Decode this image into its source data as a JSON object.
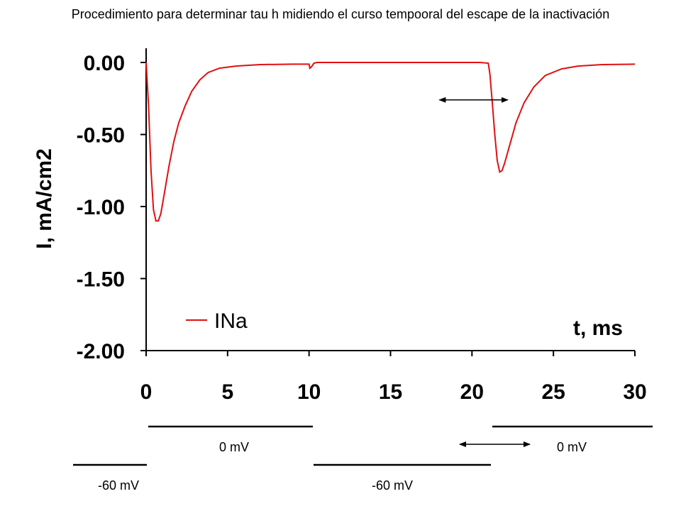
{
  "title": "Procedimiento para determinar tau h midiendo el curso tempooral del escape de la inactivación",
  "chart_data": {
    "type": "line",
    "xlabel": "t, ms",
    "ylabel": "I, mA/cm2",
    "xlim": [
      0,
      30
    ],
    "ylim": [
      -2.0,
      0.0
    ],
    "x_ticks": [
      "0",
      "5",
      "10",
      "15",
      "20",
      "25",
      "30"
    ],
    "y_ticks": [
      "0.00",
      "-0.50",
      "-1.00",
      "-1.50",
      "-2.00"
    ],
    "grid": false,
    "legend_position": "bottom-left",
    "series": [
      {
        "name": "INa",
        "color": "#e01010",
        "x": [
          0.0,
          0.15,
          0.3,
          0.45,
          0.6,
          0.75,
          0.9,
          1.1,
          1.4,
          1.7,
          2.0,
          2.4,
          2.8,
          3.3,
          3.8,
          4.5,
          5.5,
          7.0,
          9.0,
          10.0,
          10.05,
          10.15,
          10.3,
          10.5,
          12.0,
          15.0,
          18.0,
          20.5,
          21.0,
          21.1,
          21.25,
          21.4,
          21.55,
          21.7,
          21.85,
          22.0,
          22.3,
          22.7,
          23.2,
          23.8,
          24.5,
          25.5,
          26.5,
          28.0,
          30.0
        ],
        "y": [
          0.0,
          -0.3,
          -0.75,
          -1.02,
          -1.1,
          -1.1,
          -1.05,
          -0.92,
          -0.72,
          -0.55,
          -0.42,
          -0.3,
          -0.2,
          -0.12,
          -0.07,
          -0.04,
          -0.025,
          -0.015,
          -0.012,
          -0.012,
          -0.04,
          -0.03,
          -0.005,
          0.0,
          0.0,
          0.0,
          0.0,
          0.0,
          -0.005,
          -0.08,
          -0.28,
          -0.5,
          -0.68,
          -0.76,
          -0.75,
          -0.7,
          -0.58,
          -0.42,
          -0.28,
          -0.17,
          -0.09,
          -0.045,
          -0.025,
          -0.015,
          -0.012
        ]
      }
    ],
    "annotations": [
      {
        "type": "double-arrow",
        "from": [
          18.0,
          -0.26
        ],
        "to": [
          22.2,
          -0.26
        ]
      }
    ]
  },
  "protocol": {
    "labels": [
      "0 mV",
      "0 mV",
      "-60 mV",
      "-60 mV"
    ],
    "segments": [
      {
        "level": "0 mV",
        "from": 0,
        "to": 10
      },
      {
        "level": "-60 mV",
        "from": 10,
        "to": 21
      },
      {
        "level": "0 mV",
        "from": 21,
        "to": 31
      }
    ]
  }
}
